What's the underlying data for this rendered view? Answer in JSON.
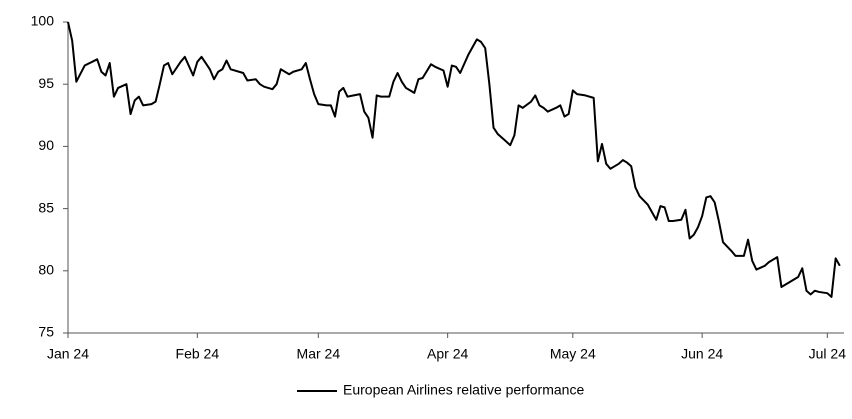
{
  "chart_data": {
    "type": "line",
    "x": [
      0,
      1,
      2,
      4,
      7,
      8,
      9,
      10,
      11,
      12,
      14,
      15,
      16,
      17,
      18,
      20,
      21,
      22,
      23,
      24,
      25,
      27,
      28,
      30,
      31,
      32,
      34,
      35,
      36,
      37,
      38,
      39,
      42,
      43,
      45,
      46,
      47,
      49,
      50,
      51,
      53,
      54,
      56,
      57,
      58,
      59,
      60,
      62,
      63,
      64,
      65,
      66,
      67,
      70,
      71,
      72,
      73,
      74,
      75,
      77,
      78,
      79,
      80,
      81,
      82,
      83,
      84,
      85,
      87,
      88,
      90,
      91,
      92,
      93,
      94,
      96,
      98,
      99,
      100,
      101,
      102,
      103,
      105,
      106,
      107,
      108,
      109,
      111,
      112,
      113,
      114,
      115,
      117,
      118,
      119,
      120,
      121,
      122,
      124,
      126,
      127,
      128,
      129,
      130,
      131,
      132,
      133,
      134,
      135,
      136,
      137,
      139,
      140,
      141,
      142,
      143,
      144,
      145,
      147,
      148,
      149,
      150,
      151,
      152,
      153,
      154,
      155,
      156,
      157,
      159,
      160,
      162,
      163,
      164,
      165,
      167,
      168,
      170,
      171,
      172,
      174,
      175,
      176,
      177,
      178,
      179,
      180,
      182,
      183,
      184,
      185
    ],
    "series": [
      {
        "name": "European Airlines relative performance",
        "color": "#000000",
        "values": [
          100,
          98.5,
          95.2,
          96.5,
          97,
          96,
          95.7,
          96.7,
          94,
          94.7,
          95,
          92.6,
          93.7,
          94,
          93.3,
          93.4,
          93.6,
          95,
          96.5,
          96.7,
          95.8,
          96.8,
          97.2,
          95.7,
          96.8,
          97.2,
          96.2,
          95.4,
          96,
          96.2,
          96.9,
          96.2,
          95.9,
          95.3,
          95.4,
          95,
          94.8,
          94.6,
          95,
          96.2,
          95.8,
          96,
          96.2,
          96.7,
          95.4,
          94.2,
          93.4,
          93.3,
          93.3,
          92.4,
          94.4,
          94.7,
          94,
          94.2,
          92.8,
          92.3,
          90.7,
          94.1,
          94,
          94,
          95.2,
          95.9,
          95.2,
          94.7,
          94.5,
          94.3,
          95.4,
          95.5,
          96.6,
          96.4,
          96.1,
          94.8,
          96.5,
          96.4,
          95.9,
          97.4,
          98.6,
          98.4,
          97.9,
          95,
          91.5,
          91,
          90.4,
          90.1,
          90.9,
          93.3,
          93.1,
          93.6,
          94.1,
          93.3,
          93.1,
          92.8,
          93.1,
          93.3,
          92.4,
          92.6,
          94.5,
          94.2,
          94.1,
          93.9,
          88.8,
          90.2,
          88.6,
          88.2,
          88.4,
          88.6,
          88.9,
          88.7,
          88.4,
          86.7,
          86,
          85.3,
          84.7,
          84.1,
          85.2,
          85.1,
          84,
          84,
          84.1,
          84.9,
          82.6,
          82.9,
          83.5,
          84.4,
          85.9,
          86,
          85.5,
          84,
          82.3,
          81.6,
          81.2,
          81.2,
          82.5,
          80.8,
          80.1,
          80.4,
          80.7,
          81.1,
          78.7,
          78.9,
          79.3,
          79.5,
          80.2,
          78.4,
          78.1,
          78.4,
          78.3,
          78.2,
          77.9,
          81,
          80.4
        ]
      }
    ],
    "xlim": [
      0,
      186
    ],
    "xticks": [
      {
        "value": 0,
        "label": "Jan 24"
      },
      {
        "value": 31,
        "label": "Feb 24"
      },
      {
        "value": 60,
        "label": "Mar 24"
      },
      {
        "value": 91,
        "label": "Apr 24"
      },
      {
        "value": 121,
        "label": "May 24"
      },
      {
        "value": 152,
        "label": "Jun 24"
      },
      {
        "value": 182,
        "label": "Jul 24"
      }
    ],
    "ylim": [
      75,
      100
    ],
    "yticks": [
      75,
      80,
      85,
      90,
      95,
      100
    ],
    "legend": "bottom"
  }
}
